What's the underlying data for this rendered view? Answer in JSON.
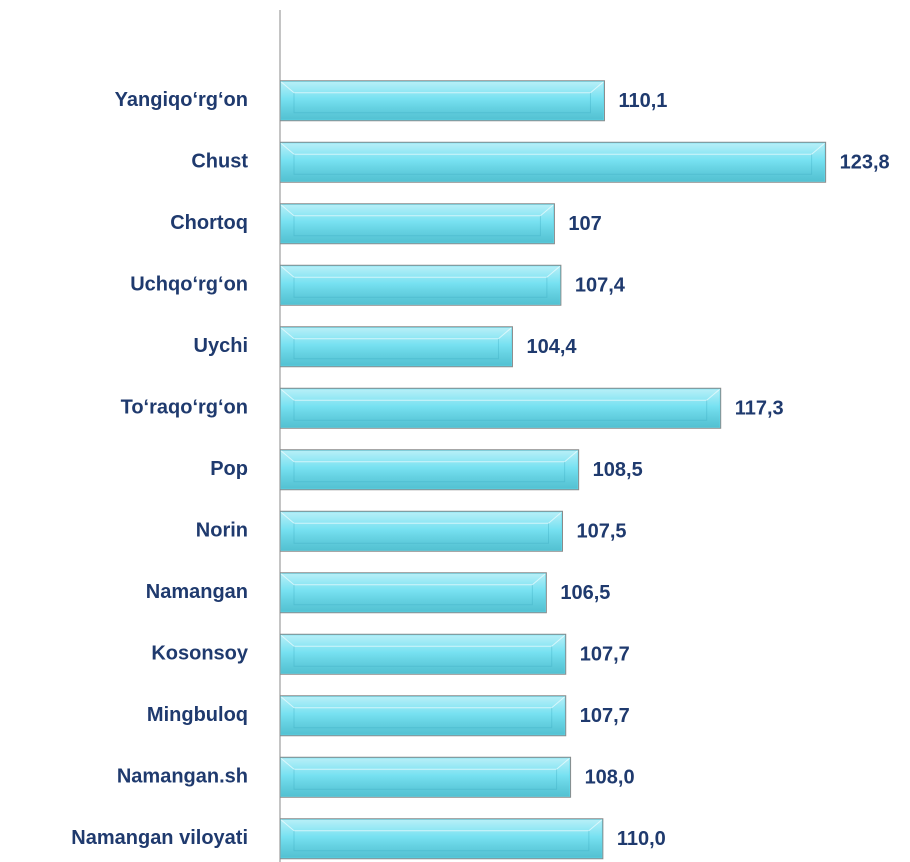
{
  "chart_data": {
    "type": "bar",
    "orientation": "horizontal",
    "categories": [
      "Yangiqo‘rg‘on",
      "Chust",
      "Chortoq",
      "Uchqo‘rg‘on",
      "Uychi",
      "To‘raqo‘rg‘on",
      "Pop",
      "Norin",
      "Namangan",
      "Kosonsoy",
      "Mingbuloq",
      "Namangan.sh",
      "Namangan viloyati"
    ],
    "values": [
      110.1,
      123.8,
      107,
      107.4,
      104.4,
      117.3,
      108.5,
      107.5,
      106.5,
      107.7,
      107.7,
      108.0,
      110.0
    ],
    "value_labels": [
      "110,1",
      "123,8",
      "107",
      "107,4",
      "104,4",
      "117,3",
      "108,5",
      "107,5",
      "106,5",
      "107,7",
      "107,7",
      "108,0",
      "110,0"
    ],
    "color": "#5fdcef",
    "xlim": [
      90,
      125
    ]
  }
}
